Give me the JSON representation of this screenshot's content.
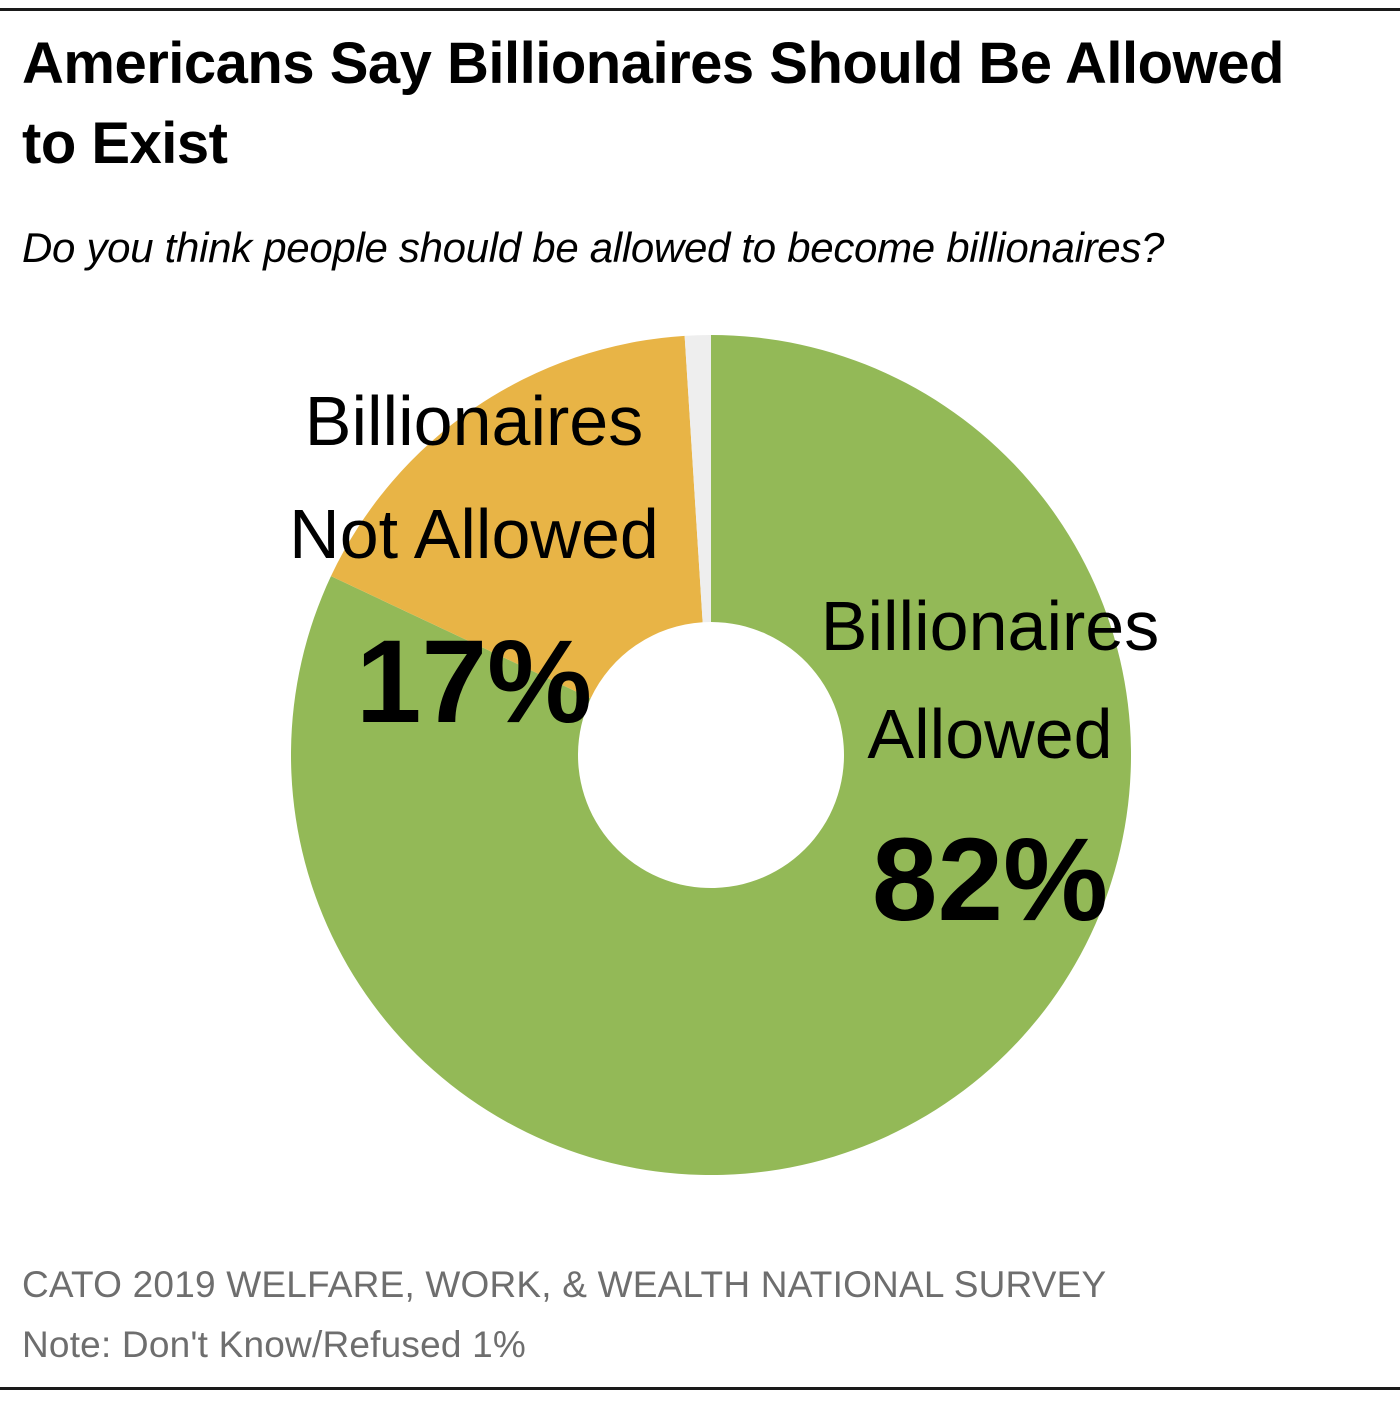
{
  "title": "Americans Say Billionaires Should Be Allowed to Exist",
  "subtitle": "Do you think people should be allowed to become billionaires?",
  "source": "CATO 2019 WELFARE, WORK, & WEALTH NATIONAL SURVEY",
  "note": "Note: Don't Know/Refused 1%",
  "chart_data": {
    "type": "pie",
    "variant": "donut",
    "slices": [
      {
        "label_lines": [
          "Billionaires",
          "Allowed"
        ],
        "value": 82,
        "value_label": "82%",
        "color": "#93b957"
      },
      {
        "label_lines": [
          "Billionaires",
          "Not Allowed"
        ],
        "value": 17,
        "value_label": "17%",
        "color": "#e8b446"
      },
      {
        "label_lines": [],
        "value": 1,
        "value_label": "",
        "color": "#eeeeee"
      }
    ]
  }
}
